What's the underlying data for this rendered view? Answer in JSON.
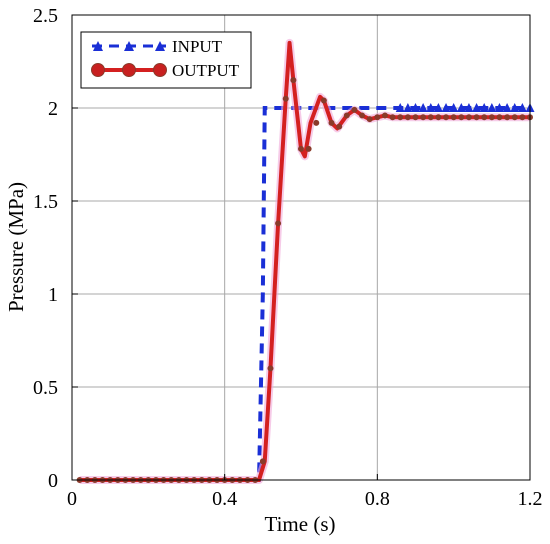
{
  "chart_data": {
    "type": "line",
    "xlabel": "Time (s)",
    "ylabel": "Pressure (MPa)",
    "xlim": [
      0,
      1.2
    ],
    "ylim": [
      0,
      2.5
    ],
    "xticks": [
      0,
      0.4,
      0.8,
      1.2
    ],
    "xtick_labels": [
      "0",
      "0.4",
      "0.8",
      "1.2"
    ],
    "yticks": [
      0,
      0.5,
      1,
      1.5,
      2,
      2.5
    ],
    "ytick_labels": [
      "0",
      "0.5",
      "1",
      "1.5",
      "2",
      "2.5"
    ],
    "grid": true,
    "legend_position": "top-left",
    "series": [
      {
        "name": "INPUT",
        "color": "#1a2fd6",
        "line_style": "dashed",
        "marker": "triangle",
        "line_x": [
          0.02,
          0.49,
          0.5,
          0.505,
          1.2
        ],
        "line_y": [
          0,
          0,
          1.0,
          2.0,
          2.0
        ],
        "marker_x": [
          0.86,
          0.88,
          0.9,
          0.92,
          0.94,
          0.96,
          0.98,
          1.0,
          1.02,
          1.04,
          1.06,
          1.08,
          1.1,
          1.12,
          1.14,
          1.16,
          1.18,
          1.2
        ],
        "marker_y": [
          2,
          2,
          2,
          2,
          2,
          2,
          2,
          2,
          2,
          2,
          2,
          2,
          2,
          2,
          2,
          2,
          2,
          2
        ]
      },
      {
        "name": "OUTPUT",
        "color": "#d42020",
        "marker_color": "#8a3a2a",
        "line_style": "solid",
        "marker": "circle",
        "line_x": [
          0.02,
          0.49,
          0.505,
          0.52,
          0.54,
          0.56,
          0.57,
          0.58,
          0.6,
          0.61,
          0.625,
          0.65,
          0.66,
          0.68,
          0.695,
          0.72,
          0.74,
          0.76,
          0.78,
          0.8,
          0.82,
          0.84,
          0.86,
          1.2
        ],
        "line_y": [
          0,
          0,
          0.1,
          0.6,
          1.38,
          2.05,
          2.35,
          2.15,
          1.78,
          1.74,
          1.92,
          2.06,
          2.04,
          1.92,
          1.89,
          1.96,
          1.99,
          1.96,
          1.94,
          1.95,
          1.96,
          1.95,
          1.95,
          1.95
        ],
        "marker_x": [
          0.02,
          0.04,
          0.06,
          0.08,
          0.1,
          0.12,
          0.14,
          0.16,
          0.18,
          0.2,
          0.22,
          0.24,
          0.26,
          0.28,
          0.3,
          0.32,
          0.34,
          0.36,
          0.38,
          0.4,
          0.42,
          0.44,
          0.46,
          0.48,
          0.5,
          0.52,
          0.54,
          0.56,
          0.58,
          0.6,
          0.62,
          0.64,
          0.66,
          0.68,
          0.7,
          0.72,
          0.74,
          0.76,
          0.78,
          0.8,
          0.82,
          0.84,
          0.86,
          0.88,
          0.9,
          0.92,
          0.94,
          0.96,
          0.98,
          1.0,
          1.02,
          1.04,
          1.06,
          1.08,
          1.1,
          1.12,
          1.14,
          1.16,
          1.18,
          1.2
        ],
        "marker_y": [
          0,
          0,
          0,
          0,
          0,
          0,
          0,
          0,
          0,
          0,
          0,
          0,
          0,
          0,
          0,
          0,
          0,
          0,
          0,
          0,
          0,
          0,
          0,
          0,
          0.1,
          0.6,
          1.38,
          2.05,
          2.15,
          1.78,
          1.78,
          1.92,
          2.04,
          1.92,
          1.9,
          1.96,
          1.99,
          1.96,
          1.94,
          1.95,
          1.96,
          1.95,
          1.95,
          1.95,
          1.95,
          1.95,
          1.95,
          1.95,
          1.95,
          1.95,
          1.95,
          1.95,
          1.95,
          1.95,
          1.95,
          1.95,
          1.95,
          1.95,
          1.95,
          1.95
        ]
      }
    ]
  }
}
